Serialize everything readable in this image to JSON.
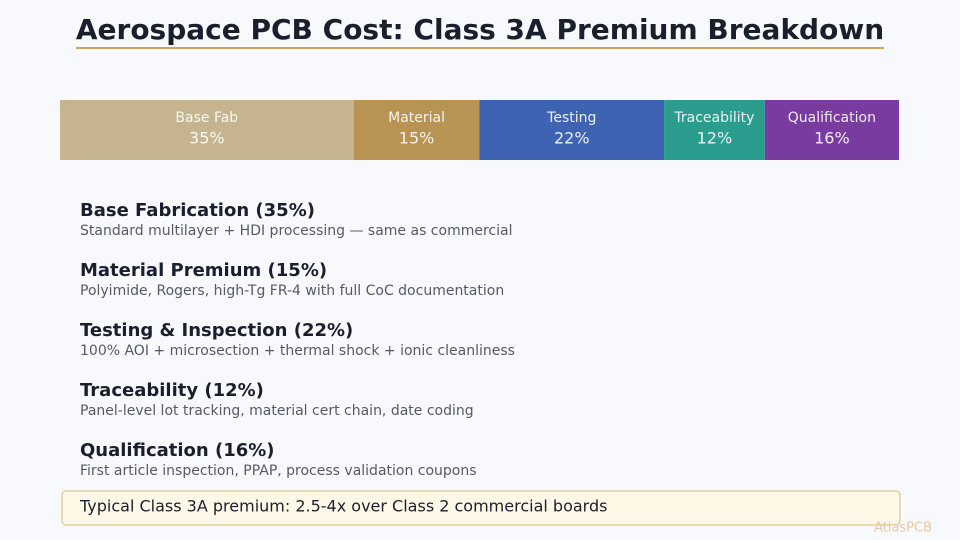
{
  "header": {
    "title": "Aerospace PCB Cost: Class 3A Premium Breakdown"
  },
  "bar": {
    "names": [
      "Base Fab",
      "Material",
      "Testing",
      "Traceability",
      "Qualification"
    ],
    "values": [
      35,
      15,
      22,
      12,
      16
    ],
    "value_labels": [
      "35%",
      "15%",
      "22%",
      "12%",
      "16%"
    ],
    "colors": [
      "#c5b48e",
      "#b89354",
      "#3e63b3",
      "#2a9d8f",
      "#7a3ba0"
    ]
  },
  "items": [
    {
      "title": "Base Fabrication (35%)",
      "text": "Standard multilayer + HDI processing — same as commercial"
    },
    {
      "title": "Material Premium (15%)",
      "text": "Polyimide, Rogers, high-Tg FR-4 with full CoC documentation"
    },
    {
      "title": "Testing & Inspection (22%)",
      "text": "100% AOI + microsection + thermal shock + ionic cleanliness"
    },
    {
      "title": "Traceability (12%)",
      "text": "Panel-level lot tracking, material cert chain, date coding"
    },
    {
      "title": "Qualification (16%)",
      "text": "First article inspection, PPAP, process validation coupons"
    }
  ],
  "callout": "Typical Class 3A premium: 2.5-4x over Class 2 commercial boards",
  "watermark": "AtlasPCB"
}
